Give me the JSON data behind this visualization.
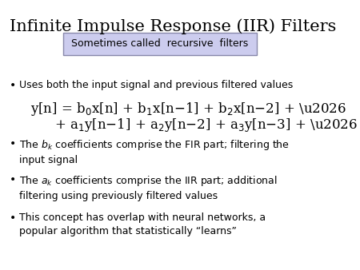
{
  "title": "Infinite Impulse Response (IIR) Filters",
  "title_fontsize": 15,
  "title_color": "#000000",
  "bg_color": "#ffffff",
  "box_text": "Sometimes called  recursive  filters",
  "box_bg": "#ccccee",
  "box_border": "#8888aa",
  "bullet_fontsize": 9,
  "eq_fontsize": 12,
  "bullets": [
    "Uses both the input signal and previous filtered values",
    "The $b_k$ coefficients comprise the FIR part; filtering the\ninput signal",
    "The $a_k$ coefficients comprise the IIR part; additional\nfiltering using previously filtered values",
    "This concept has overlap with neural networks, a\npopular algorithm that statistically “learns”"
  ],
  "eq_line1": "y[n] = b$_0$x[n] + b$_1$x[n-1] + b$_2$x[n-2] + …",
  "eq_line2": "       + a$_1$y[n-1] + a$_2$y[n-2] + a$_3$y[n-3] + …"
}
